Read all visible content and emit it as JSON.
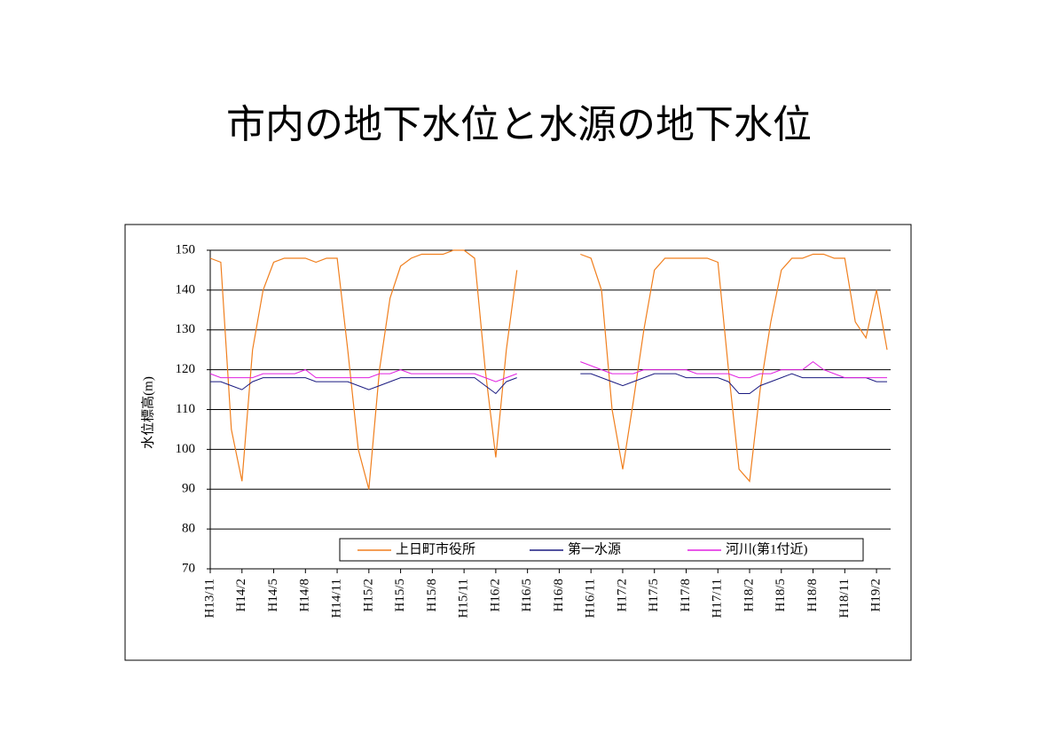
{
  "chart_data": {
    "type": "line",
    "title": "市内の地下水位と水源の地下水位",
    "y_label": "水位標高(m)",
    "categories": [
      "H13/11",
      null,
      null,
      "H14/2",
      null,
      null,
      "H14/5",
      null,
      null,
      "H14/8",
      null,
      null,
      "H14/11",
      null,
      null,
      "H15/2",
      null,
      null,
      "H15/5",
      null,
      null,
      "H15/8",
      null,
      null,
      "H15/11",
      null,
      null,
      "H16/2",
      null,
      null,
      "H16/5",
      null,
      null,
      "H16/8",
      null,
      null,
      "H16/11",
      null,
      null,
      "H17/2",
      null,
      null,
      "H17/5",
      null,
      null,
      "H17/8",
      null,
      null,
      "H17/11",
      null,
      null,
      "H18/2",
      null,
      null,
      "H18/5",
      null,
      null,
      "H18/8",
      null,
      null,
      "H18/11",
      null,
      null,
      "H19/2",
      null
    ],
    "series": [
      {
        "name": "上日町市役所",
        "color": "#f07f1e",
        "values": [
          148,
          147,
          105,
          92,
          125,
          140,
          147,
          148,
          148,
          148,
          147,
          148,
          148,
          125,
          100,
          90,
          120,
          138,
          146,
          148,
          149,
          149,
          149,
          150,
          150,
          148,
          120,
          98,
          125,
          145,
          null,
          null,
          null,
          null,
          null,
          149,
          148,
          140,
          110,
          95,
          112,
          130,
          145,
          148,
          148,
          148,
          148,
          148,
          147,
          120,
          95,
          92,
          115,
          132,
          145,
          148,
          148,
          149,
          149,
          148,
          148,
          132,
          128,
          140,
          125
        ]
      },
      {
        "name": "第一水源",
        "color": "#1a1a80",
        "values": [
          117,
          117,
          116,
          115,
          117,
          118,
          118,
          118,
          118,
          118,
          117,
          117,
          117,
          117,
          116,
          115,
          116,
          117,
          118,
          118,
          118,
          118,
          118,
          118,
          118,
          118,
          116,
          114,
          117,
          118,
          null,
          null,
          null,
          null,
          null,
          119,
          119,
          118,
          117,
          116,
          117,
          118,
          119,
          119,
          119,
          118,
          118,
          118,
          118,
          117,
          114,
          114,
          116,
          117,
          118,
          119,
          118,
          118,
          118,
          118,
          118,
          118,
          118,
          117,
          117
        ]
      },
      {
        "name": "河川(第1付近)",
        "color": "#e020e0",
        "values": [
          119,
          118,
          118,
          118,
          118,
          119,
          119,
          119,
          119,
          120,
          118,
          118,
          118,
          118,
          118,
          118,
          119,
          119,
          120,
          119,
          119,
          119,
          119,
          119,
          119,
          119,
          118,
          117,
          118,
          119,
          null,
          null,
          null,
          null,
          null,
          122,
          121,
          120,
          119,
          119,
          119,
          120,
          120,
          120,
          120,
          120,
          119,
          119,
          119,
          119,
          118,
          118,
          119,
          119,
          120,
          120,
          120,
          122,
          120,
          119,
          118,
          118,
          118,
          118,
          118
        ]
      }
    ],
    "ylim": [
      70,
      150
    ],
    "yticks": [
      70,
      80,
      90,
      100,
      110,
      120,
      130,
      140,
      150
    ],
    "grid": true
  }
}
